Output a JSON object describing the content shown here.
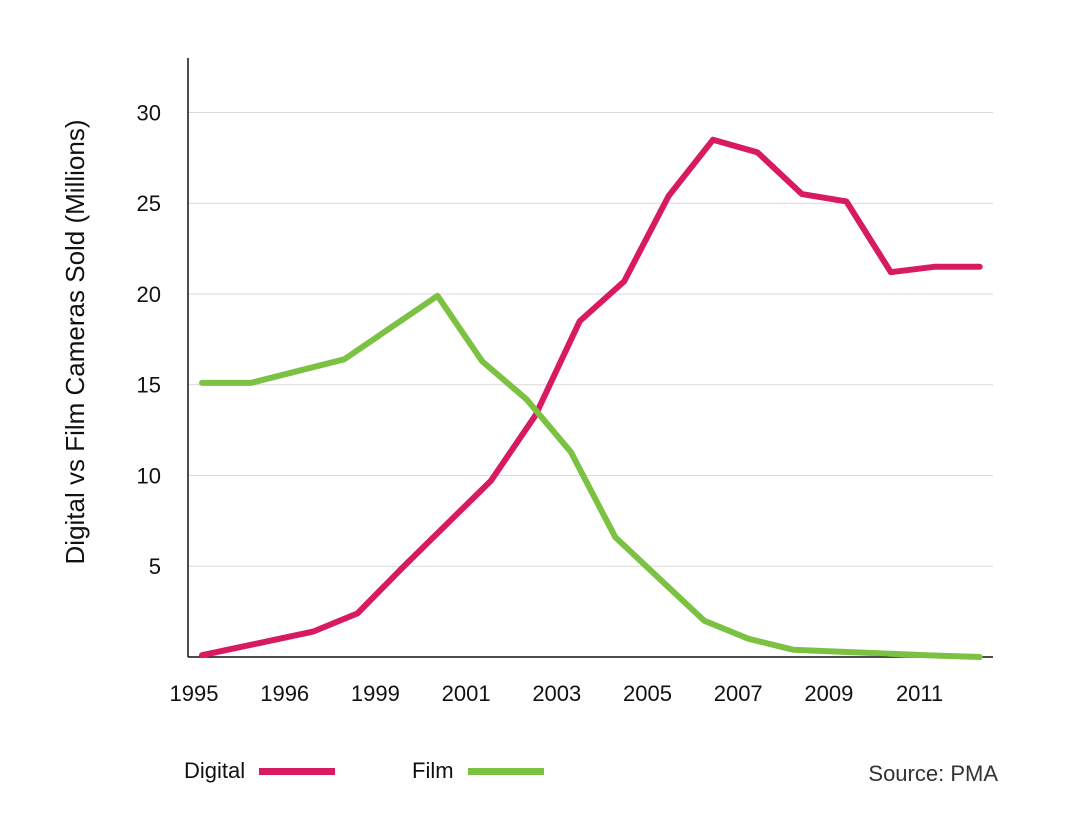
{
  "chart_data": {
    "type": "line",
    "ylabel": "Digital vs Film Cameras Sold (Millions)",
    "ylim": [
      0,
      33
    ],
    "yticks": [
      5,
      10,
      15,
      20,
      25,
      30
    ],
    "xlim": [
      0,
      17.8
    ],
    "x_tick_labels": [
      {
        "pos": 0,
        "label": "1995"
      },
      {
        "pos": 1,
        "label": "1996"
      },
      {
        "pos": 2,
        "label": "1999"
      },
      {
        "pos": 3,
        "label": "2001"
      },
      {
        "pos": 4,
        "label": "2003"
      },
      {
        "pos": 5,
        "label": "2005"
      },
      {
        "pos": 6,
        "label": "2007"
      },
      {
        "pos": 7,
        "label": "2009"
      },
      {
        "pos": 8,
        "label": "2011"
      }
    ],
    "grid": true,
    "series": [
      {
        "name": "Digital",
        "color": "#d81b60",
        "x": [
          0,
          2.5,
          3.5,
          4.5,
          5.5,
          6.5,
          7.5,
          8.5,
          9.5,
          10.5,
          11.5,
          12.5,
          13.5,
          14.5,
          15.5,
          16.5,
          17.5
        ],
        "values": [
          0.1,
          1.4,
          2.4,
          4.9,
          7.3,
          9.7,
          13.3,
          18.5,
          20.7,
          25.4,
          28.5,
          27.8,
          25.5,
          25.1,
          21.2,
          21.5,
          21.5
        ]
      },
      {
        "name": "Film",
        "color": "#7cc242",
        "x": [
          0,
          1.1,
          3.2,
          5.3,
          6.3,
          7.3,
          8.3,
          9.3,
          10.3,
          11.3,
          12.3,
          13.3,
          14.3,
          15.3,
          16.3,
          17.5
        ],
        "values": [
          15.1,
          15.1,
          16.4,
          19.9,
          16.3,
          14.2,
          11.3,
          6.6,
          4.3,
          2.0,
          1.0,
          0.4,
          0.3,
          0.2,
          0.1,
          0.0
        ]
      }
    ],
    "legend": {
      "placement": "bottom-left"
    },
    "source": "Source: PMA"
  }
}
